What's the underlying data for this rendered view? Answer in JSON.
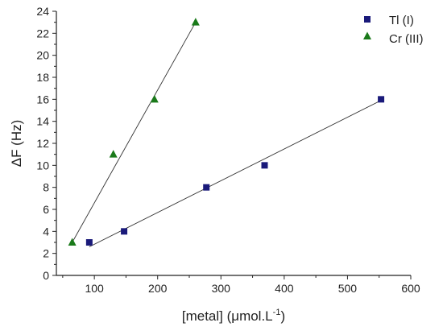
{
  "chart_data": {
    "type": "scatter",
    "title": "",
    "xlabel": "[metal] (μmol.L",
    "xlabel_sup": "-1",
    "xlabel_close": ")",
    "ylabel": "ΔF (Hz)",
    "xlim": [
      40,
      600
    ],
    "ylim": [
      0,
      24
    ],
    "xticks": [
      100,
      200,
      300,
      400,
      500,
      600
    ],
    "yticks": [
      0,
      2,
      4,
      6,
      8,
      10,
      12,
      14,
      16,
      18,
      20,
      22,
      24
    ],
    "grid": false,
    "legend_position": "top-right",
    "series": [
      {
        "name": "Tl (I)",
        "marker": "square",
        "color": "#1a1a7a",
        "points": [
          [
            92,
            3
          ],
          [
            147,
            4
          ],
          [
            277,
            8
          ],
          [
            369,
            10
          ],
          [
            553,
            16
          ]
        ],
        "fit_line": [
          [
            92,
            2.6
          ],
          [
            553,
            15.9
          ]
        ]
      },
      {
        "name": "Cr (III)",
        "marker": "triangle",
        "color": "#1a7a1a",
        "points": [
          [
            65,
            3
          ],
          [
            130,
            11
          ],
          [
            195,
            16
          ],
          [
            260,
            23
          ]
        ],
        "fit_line": [
          [
            65,
            3.0
          ],
          [
            260,
            23.0
          ]
        ]
      }
    ]
  }
}
